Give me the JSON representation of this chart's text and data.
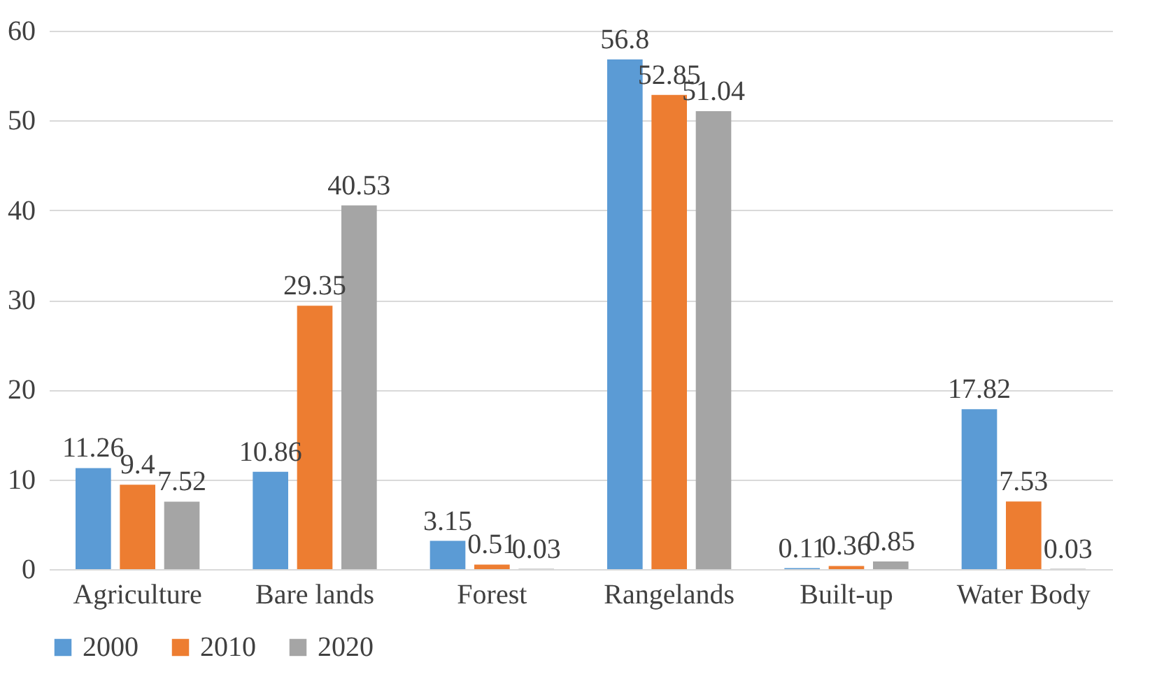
{
  "chart_data": {
    "type": "bar",
    "categories": [
      "Agriculture",
      "Bare lands",
      "Forest",
      "Rangelands",
      "Built-up",
      "Water Body"
    ],
    "series": [
      {
        "name": "2000",
        "color": "#5b9bd5",
        "values": [
          11.26,
          10.86,
          3.15,
          56.8,
          0.11,
          17.82
        ]
      },
      {
        "name": "2010",
        "color": "#ed7d31",
        "values": [
          9.4,
          29.35,
          0.51,
          52.85,
          0.36,
          7.53
        ]
      },
      {
        "name": "2020",
        "color": "#a5a5a5",
        "values": [
          7.52,
          40.53,
          0.03,
          51.04,
          0.85,
          0.03
        ]
      }
    ],
    "ylim": [
      0,
      60
    ],
    "yticks": [
      0,
      10,
      20,
      30,
      40,
      50,
      60
    ],
    "grid": "y",
    "legend": "bottom",
    "data_labels": true
  }
}
